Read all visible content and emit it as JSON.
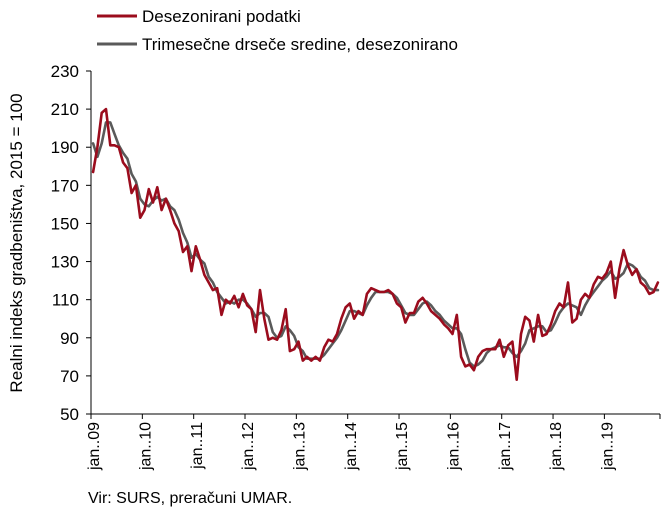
{
  "source_note": "Vir: SURS, preračuni UMAR.",
  "chart_data": {
    "type": "line",
    "title": "",
    "ylabel": "Realni indeks gradbeništva, 2015 = 100",
    "xlabel": "",
    "ylim": [
      50,
      230
    ],
    "yticks": [
      50,
      70,
      90,
      110,
      130,
      150,
      170,
      190,
      210,
      230
    ],
    "grid": false,
    "legend_position": "top-left",
    "x_start": "2009-01",
    "x_end": "2019-12",
    "xtick_labels": [
      "jan..09",
      "jan..10",
      "jan..11",
      "jan..12",
      "jan..13",
      "jan..14",
      "jan..15",
      "jan..16",
      "jan..17",
      "jan..18",
      "jan..19"
    ],
    "series": [
      {
        "name": "Desezonirani podatki",
        "color": "#9b0c1d",
        "values": [
          177,
          190,
          208,
          210,
          191,
          191,
          190,
          182,
          179,
          166,
          170,
          153,
          157,
          168,
          161,
          169,
          157,
          163,
          157,
          150,
          146,
          135,
          138,
          125,
          138,
          131,
          123,
          119,
          115,
          116,
          102,
          110,
          108,
          112,
          106,
          113,
          107,
          105,
          93,
          115,
          100,
          89,
          90,
          89,
          94,
          105,
          83,
          84,
          88,
          78,
          80,
          78,
          80,
          78,
          85,
          89,
          88,
          92,
          100,
          106,
          108,
          100,
          104,
          102,
          113,
          116,
          115,
          114,
          114,
          115,
          113,
          108,
          106,
          98,
          103,
          103,
          109,
          111,
          108,
          104,
          102,
          100,
          97,
          95,
          92,
          102,
          80,
          75,
          76,
          73,
          80,
          83,
          84,
          84,
          84,
          89,
          80,
          86,
          88,
          68,
          92,
          101,
          99,
          88,
          102,
          91,
          92,
          97,
          104,
          108,
          106,
          119,
          98,
          100,
          110,
          113,
          111,
          118,
          122,
          121,
          124,
          130,
          111,
          126,
          136,
          128,
          123,
          126,
          119,
          117,
          113,
          114,
          119
        ]
      },
      {
        "name": "Trimesečne drseče sredine, desezonirano",
        "color": "#5a5a5a",
        "values": [
          192,
          185,
          192,
          203,
          203,
          197,
          191,
          187,
          184,
          176,
          172,
          163,
          160,
          159,
          162,
          164,
          162,
          163,
          159,
          157,
          152,
          145,
          140,
          132,
          134,
          131,
          129,
          122,
          119,
          114,
          111,
          108,
          109,
          108,
          110,
          110,
          108,
          105,
          101,
          103,
          103,
          101,
          93,
          90,
          91,
          96,
          94,
          91,
          85,
          83,
          79,
          79,
          79,
          79,
          81,
          84,
          87,
          90,
          94,
          99,
          104,
          104,
          103,
          102,
          107,
          111,
          114,
          114,
          114,
          114,
          113,
          111,
          107,
          103,
          102,
          102,
          105,
          108,
          109,
          107,
          104,
          102,
          99,
          97,
          95,
          95,
          92,
          84,
          77,
          75,
          76,
          78,
          82,
          84,
          85,
          86,
          85,
          85,
          82,
          80,
          83,
          87,
          94,
          95,
          96,
          96,
          93,
          94,
          98,
          103,
          106,
          108,
          107,
          106,
          102,
          107,
          111,
          114,
          117,
          120,
          122,
          125,
          121,
          122,
          124,
          129,
          128,
          126,
          122,
          120,
          116,
          115,
          115
        ]
      }
    ]
  }
}
